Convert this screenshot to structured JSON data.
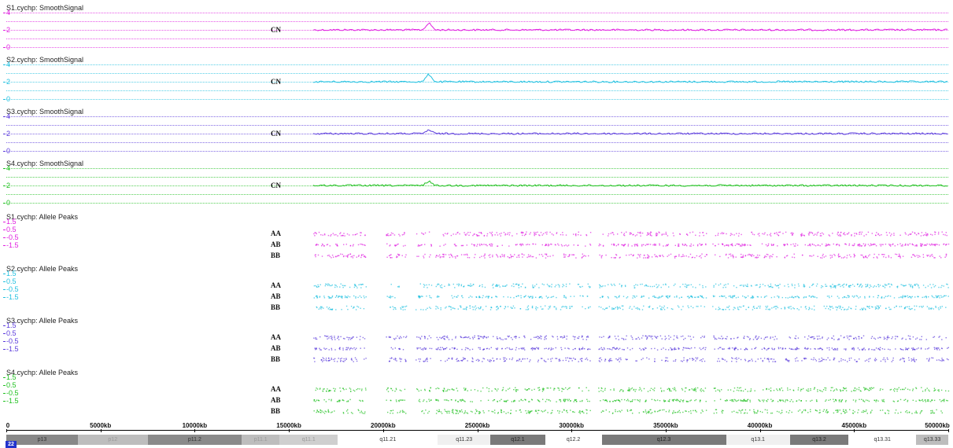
{
  "signal_tracks": [
    {
      "title": "S1.cychp: SmoothSignal",
      "scale": [
        "4",
        "2",
        "0"
      ],
      "label": "CN",
      "color": "#e020e0",
      "peak_height": 9
    },
    {
      "title": "S2.cychp: SmoothSignal",
      "scale": [
        "4",
        "2",
        "0"
      ],
      "label": "CN",
      "color": "#20c0e0",
      "peak_height": 10
    },
    {
      "title": "S3.cychp: SmoothSignal",
      "scale": [
        "4",
        "2",
        "0"
      ],
      "label": "CN",
      "color": "#5a3adc",
      "peak_height": 5
    },
    {
      "title": "S4.cychp: SmoothSignal",
      "scale": [
        "4",
        "2",
        "0"
      ],
      "label": "CN",
      "color": "#20c020",
      "peak_height": 6
    }
  ],
  "allele_tracks": [
    {
      "title": "S1.cychp: Allele Peaks",
      "scale": [
        "1.5",
        "0.5",
        "-0.5",
        "-1.5"
      ],
      "labels": [
        "AA",
        "AB",
        "BB"
      ],
      "color": "#e020e0"
    },
    {
      "title": "S2.cychp: Allele Peaks",
      "scale": [
        "1.5",
        "0.5",
        "-0.5",
        "-1.5"
      ],
      "labels": [
        "AA",
        "AB",
        "BB"
      ],
      "color": "#20c0e0"
    },
    {
      "title": "S3.cychp: Allele Peaks",
      "scale": [
        "1.5",
        "0.5",
        "-0.5",
        "-1.5"
      ],
      "labels": [
        "AA",
        "AB",
        "BB"
      ],
      "color": "#5a3adc"
    },
    {
      "title": "S4.cychp: Allele Peaks",
      "scale": [
        "1.5",
        "0.5",
        "-0.5",
        "-1.5"
      ],
      "labels": [
        "AA",
        "AB",
        "BB"
      ],
      "color": "#20c020"
    }
  ],
  "axis": {
    "labels": [
      "0",
      "5000kb",
      "10000kb",
      "15000kb",
      "20000kb",
      "25000kb",
      "30000kb",
      "35000kb",
      "40000kb",
      "45000kb",
      "50000kb"
    ],
    "max_kb": 50000
  },
  "ideogram": {
    "chromosome": "22",
    "bands": [
      {
        "name": "p13",
        "start": 0,
        "end": 3800,
        "shade": "#888888",
        "text": "#333"
      },
      {
        "name": "p12",
        "start": 3800,
        "end": 7500,
        "shade": "#bdbdbd",
        "text": "#999"
      },
      {
        "name": "p11.2",
        "start": 7500,
        "end": 12500,
        "shade": "#8a8a8a",
        "text": "#333"
      },
      {
        "name": "p11.1",
        "start": 12500,
        "end": 14500,
        "shade": "#bdbdbd",
        "text": "#999"
      },
      {
        "name": "q11.1",
        "start": 14500,
        "end": 17600,
        "shade": "#cfcfcf",
        "text": "#999"
      },
      {
        "name": "q11.21",
        "start": 17600,
        "end": 22900,
        "shade": "#ffffff",
        "text": "#333"
      },
      {
        "name": "q11.23",
        "start": 22900,
        "end": 25700,
        "shade": "#f0f0f0",
        "text": "#333"
      },
      {
        "name": "q12.1",
        "start": 25700,
        "end": 28600,
        "shade": "#7a7a7a",
        "text": "#222"
      },
      {
        "name": "q12.2",
        "start": 28600,
        "end": 31600,
        "shade": "#ffffff",
        "text": "#333"
      },
      {
        "name": "q12.3",
        "start": 31600,
        "end": 38200,
        "shade": "#7a7a7a",
        "text": "#222"
      },
      {
        "name": "q13.1",
        "start": 38200,
        "end": 41600,
        "shade": "#f0f0f0",
        "text": "#333"
      },
      {
        "name": "q13.2",
        "start": 41600,
        "end": 44700,
        "shade": "#7a7a7a",
        "text": "#222"
      },
      {
        "name": "q13.31",
        "start": 44700,
        "end": 48300,
        "shade": "#ffffff",
        "text": "#333"
      },
      {
        "name": "q13.33",
        "start": 48300,
        "end": 50000,
        "shade": "#bdbdbd",
        "text": "#333"
      }
    ]
  }
}
